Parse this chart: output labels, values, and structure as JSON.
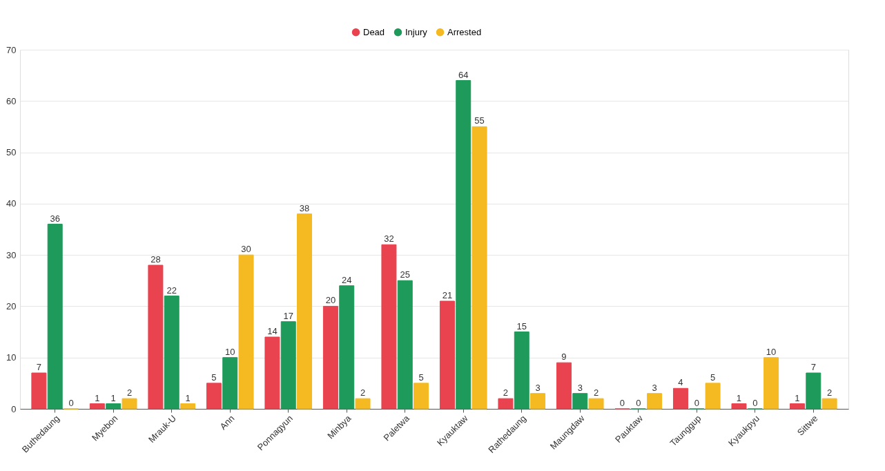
{
  "chart_data": {
    "type": "bar",
    "categories": [
      "Buthedaung",
      "Myebon",
      "Mrauk-U",
      "Ann",
      "Ponnagyun",
      "Minbya",
      "Paletwa",
      "Kyauktaw",
      "Rathedaung",
      "Maungdaw",
      "Pauktaw",
      "Taunggup",
      "Kyaukpyu",
      "Sittwe"
    ],
    "series": [
      {
        "name": "Dead",
        "color": "#e8434f",
        "values": [
          7,
          1,
          28,
          5,
          14,
          20,
          32,
          21,
          2,
          9,
          0,
          4,
          1,
          1
        ]
      },
      {
        "name": "Injury",
        "color": "#1e9a5a",
        "values": [
          36,
          1,
          22,
          10,
          17,
          24,
          25,
          64,
          15,
          3,
          0,
          0,
          0,
          7
        ]
      },
      {
        "name": "Arrested",
        "color": "#f5b921",
        "values": [
          0,
          2,
          1,
          30,
          38,
          2,
          5,
          55,
          3,
          2,
          3,
          5,
          10,
          2
        ]
      }
    ],
    "ylim": [
      0,
      70
    ],
    "yticks": [
      0,
      10,
      20,
      30,
      40,
      50,
      60,
      70
    ],
    "grid": "y",
    "legend": "top",
    "data_labels": true
  }
}
